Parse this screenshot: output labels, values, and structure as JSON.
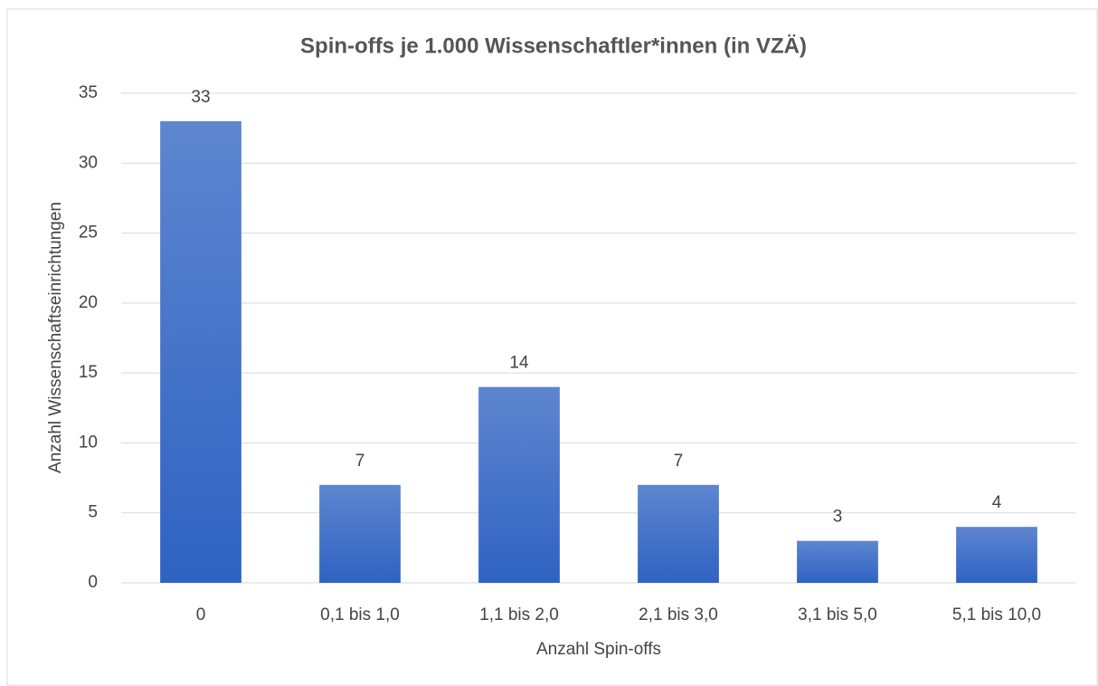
{
  "chart_data": {
    "type": "bar",
    "title": "Spin-offs je 1.000 Wissenschaftler*innen (in VZÄ)",
    "x_label": "Anzahl Spin-offs",
    "y_label": "Anzahl Wissenschaftseinrichtungen",
    "categories": [
      "0",
      "0,1 bis 1,0",
      "1,1 bis 2,0",
      "2,1 bis 3,0",
      "3,1 bis 5,0",
      "5,1 bis 10,0"
    ],
    "values": [
      33,
      7,
      14,
      7,
      3,
      4
    ],
    "color": "#3a6cc8",
    "ylim": [
      0,
      35
    ],
    "yticks": [
      0,
      5,
      10,
      15,
      20,
      25,
      30,
      35
    ],
    "grid": true
  }
}
